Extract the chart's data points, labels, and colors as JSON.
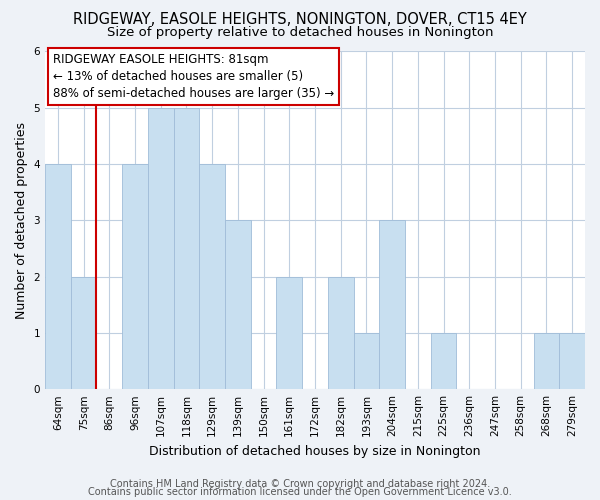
{
  "title": "RIDGEWAY, EASOLE HEIGHTS, NONINGTON, DOVER, CT15 4EY",
  "subtitle": "Size of property relative to detached houses in Nonington",
  "xlabel": "Distribution of detached houses by size in Nonington",
  "ylabel": "Number of detached properties",
  "categories": [
    "64sqm",
    "75sqm",
    "86sqm",
    "96sqm",
    "107sqm",
    "118sqm",
    "129sqm",
    "139sqm",
    "150sqm",
    "161sqm",
    "172sqm",
    "182sqm",
    "193sqm",
    "204sqm",
    "215sqm",
    "225sqm",
    "236sqm",
    "247sqm",
    "258sqm",
    "268sqm",
    "279sqm"
  ],
  "values": [
    4,
    2,
    0,
    4,
    5,
    5,
    4,
    3,
    0,
    2,
    0,
    2,
    1,
    3,
    0,
    1,
    0,
    0,
    0,
    1,
    1
  ],
  "bar_color": "#c8dff0",
  "bar_edge_color": "#a0bcd8",
  "property_line_color": "#cc0000",
  "property_line_x": 1.5,
  "ylim": [
    0,
    6
  ],
  "yticks": [
    0,
    1,
    2,
    3,
    4,
    5,
    6
  ],
  "annotation_text_line1": "RIDGEWAY EASOLE HEIGHTS: 81sqm",
  "annotation_text_line2": "← 13% of detached houses are smaller (5)",
  "annotation_text_line3": "88% of semi-detached houses are larger (35) →",
  "footer_line1": "Contains HM Land Registry data © Crown copyright and database right 2024.",
  "footer_line2": "Contains public sector information licensed under the Open Government Licence v3.0.",
  "background_color": "#eef2f7",
  "plot_background_color": "#ffffff",
  "grid_color": "#c0cfe0",
  "title_fontsize": 10.5,
  "subtitle_fontsize": 9.5,
  "axis_label_fontsize": 9,
  "tick_fontsize": 7.5,
  "annotation_fontsize": 8.5,
  "footer_fontsize": 7
}
